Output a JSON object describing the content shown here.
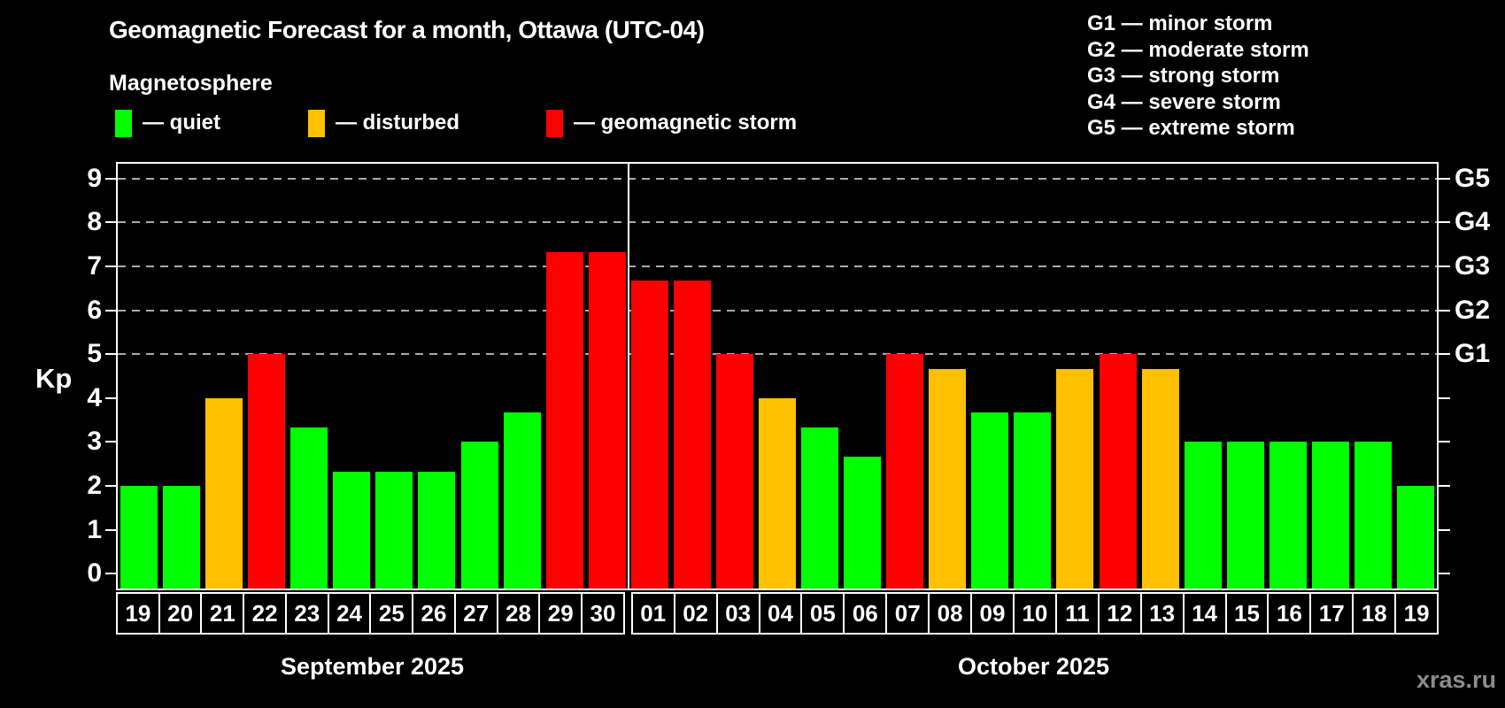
{
  "title": "Geomagnetic Forecast for a month, Ottawa (UTC-04)",
  "subtitle": "Magnetosphere",
  "kp_axis_label": "Kp",
  "watermark": "xras.ru",
  "legend": {
    "items": [
      {
        "key": "quiet",
        "label": "— quiet",
        "color": "#00ff00",
        "x": 0
      },
      {
        "key": "disturbed",
        "label": "— disturbed",
        "color": "#ffc000",
        "x": 218
      },
      {
        "key": "storm",
        "label": "— geomagnetic storm",
        "color": "#ff0000",
        "x": 487
      }
    ]
  },
  "g_legend": [
    "G1 — minor storm",
    "G2 — moderate storm",
    "G3 — strong storm",
    "G4 — severe storm",
    "G5 — extreme storm"
  ],
  "chart_data": {
    "type": "bar",
    "title": "Geomagnetic Forecast for a month, Ottawa (UTC-04)",
    "ylabel": "Kp",
    "ylim": [
      0,
      9
    ],
    "yticks": [
      0,
      1,
      2,
      3,
      4,
      5,
      6,
      7,
      8,
      9
    ],
    "gridlines_kp": [
      5,
      6,
      7,
      8,
      9
    ],
    "grid": "dashed, only at storm levels G1–G5",
    "legend_position": "top",
    "right_axis_labels": [
      {
        "kp": 5,
        "label": "G1"
      },
      {
        "kp": 6,
        "label": "G2"
      },
      {
        "kp": 7,
        "label": "G3"
      },
      {
        "kp": 8,
        "label": "G4"
      },
      {
        "kp": 9,
        "label": "G5"
      }
    ],
    "series_colors": {
      "quiet": "#00ff00",
      "disturbed": "#ffc000",
      "storm": "#ff0000"
    },
    "months": [
      {
        "label": "September 2025",
        "days": 12
      },
      {
        "label": "October 2025",
        "days": 19
      }
    ],
    "bars": [
      {
        "date": "19",
        "kp": 2.0,
        "level": "quiet"
      },
      {
        "date": "20",
        "kp": 2.0,
        "level": "quiet"
      },
      {
        "date": "21",
        "kp": 4.0,
        "level": "disturbed"
      },
      {
        "date": "22",
        "kp": 5.0,
        "level": "storm"
      },
      {
        "date": "23",
        "kp": 3.33,
        "level": "quiet"
      },
      {
        "date": "24",
        "kp": 2.33,
        "level": "quiet"
      },
      {
        "date": "25",
        "kp": 2.33,
        "level": "quiet"
      },
      {
        "date": "26",
        "kp": 2.33,
        "level": "quiet"
      },
      {
        "date": "27",
        "kp": 3.0,
        "level": "quiet"
      },
      {
        "date": "28",
        "kp": 3.67,
        "level": "quiet"
      },
      {
        "date": "29",
        "kp": 7.33,
        "level": "storm"
      },
      {
        "date": "30",
        "kp": 7.33,
        "level": "storm"
      },
      {
        "date": "01",
        "kp": 6.67,
        "level": "storm"
      },
      {
        "date": "02",
        "kp": 6.67,
        "level": "storm"
      },
      {
        "date": "03",
        "kp": 5.0,
        "level": "storm"
      },
      {
        "date": "04",
        "kp": 4.0,
        "level": "disturbed"
      },
      {
        "date": "05",
        "kp": 3.33,
        "level": "quiet"
      },
      {
        "date": "06",
        "kp": 2.67,
        "level": "quiet"
      },
      {
        "date": "07",
        "kp": 5.0,
        "level": "storm"
      },
      {
        "date": "08",
        "kp": 4.67,
        "level": "disturbed"
      },
      {
        "date": "09",
        "kp": 3.67,
        "level": "quiet"
      },
      {
        "date": "10",
        "kp": 3.67,
        "level": "quiet"
      },
      {
        "date": "11",
        "kp": 4.67,
        "level": "disturbed"
      },
      {
        "date": "12",
        "kp": 5.0,
        "level": "storm"
      },
      {
        "date": "13",
        "kp": 4.67,
        "level": "disturbed"
      },
      {
        "date": "14",
        "kp": 3.0,
        "level": "quiet"
      },
      {
        "date": "15",
        "kp": 3.0,
        "level": "quiet"
      },
      {
        "date": "16",
        "kp": 3.0,
        "level": "quiet"
      },
      {
        "date": "17",
        "kp": 3.0,
        "level": "quiet"
      },
      {
        "date": "18",
        "kp": 3.0,
        "level": "quiet"
      },
      {
        "date": "19",
        "kp": 2.0,
        "level": "quiet"
      }
    ]
  }
}
